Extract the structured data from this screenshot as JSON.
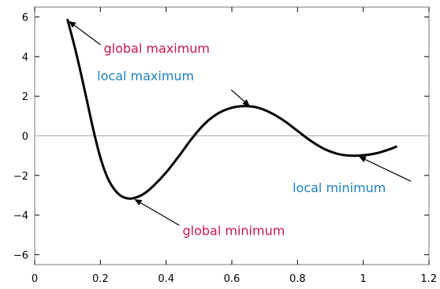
{
  "chart_data": {
    "type": "line",
    "title": "",
    "xlabel": "",
    "ylabel": "",
    "xlim": [
      0,
      1.2
    ],
    "ylim": [
      -6.5,
      6.5
    ],
    "grid": false,
    "x_ticks": [
      0,
      0.2,
      0.4,
      0.6,
      0.8,
      1,
      1.2
    ],
    "x_tick_labels": [
      "0",
      "0.2",
      "0.4",
      "0.6",
      "0.8",
      "1",
      "1.2"
    ],
    "y_ticks": [
      6,
      4,
      2,
      0,
      -2,
      -4,
      -6
    ],
    "y_tick_labels": [
      "6",
      "4",
      "2",
      "0",
      "−2",
      "−4",
      "−6"
    ],
    "zero_line": true,
    "series": [
      {
        "color": "#000000",
        "points": [
          {
            "x": 0.1,
            "y": 5.85
          },
          {
            "x": 0.12,
            "y": 4.6
          },
          {
            "x": 0.14,
            "y": 3.2
          },
          {
            "x": 0.16,
            "y": 1.7
          },
          {
            "x": 0.18,
            "y": 0.2
          },
          {
            "x": 0.2,
            "y": -1.1
          },
          {
            "x": 0.22,
            "y": -2.05
          },
          {
            "x": 0.24,
            "y": -2.65
          },
          {
            "x": 0.26,
            "y": -3.0
          },
          {
            "x": 0.28,
            "y": -3.15
          },
          {
            "x": 0.3,
            "y": -3.15
          },
          {
            "x": 0.33,
            "y": -2.95
          },
          {
            "x": 0.36,
            "y": -2.55
          },
          {
            "x": 0.4,
            "y": -1.85
          },
          {
            "x": 0.44,
            "y": -1.0
          },
          {
            "x": 0.48,
            "y": -0.1
          },
          {
            "x": 0.52,
            "y": 0.65
          },
          {
            "x": 0.56,
            "y": 1.15
          },
          {
            "x": 0.6,
            "y": 1.42
          },
          {
            "x": 0.64,
            "y": 1.5
          },
          {
            "x": 0.68,
            "y": 1.42
          },
          {
            "x": 0.72,
            "y": 1.15
          },
          {
            "x": 0.76,
            "y": 0.75
          },
          {
            "x": 0.8,
            "y": 0.25
          },
          {
            "x": 0.84,
            "y": -0.25
          },
          {
            "x": 0.88,
            "y": -0.65
          },
          {
            "x": 0.92,
            "y": -0.9
          },
          {
            "x": 0.96,
            "y": -1.0
          },
          {
            "x": 1.0,
            "y": -0.98
          },
          {
            "x": 1.04,
            "y": -0.88
          },
          {
            "x": 1.08,
            "y": -0.68
          },
          {
            "x": 1.1,
            "y": -0.55
          }
        ]
      }
    ],
    "annotations": [
      {
        "text": "global maximum",
        "color": "#c8184a",
        "text_at": {
          "x": 0.21,
          "y": 4.2
        },
        "arrow_to": {
          "x": 0.1,
          "y": 5.85
        }
      },
      {
        "text": "local maximum",
        "color": "#1f7fc4",
        "text_at": {
          "x": 0.19,
          "y": 2.8
        },
        "arrow_to": {
          "x": 0.66,
          "y": 1.5
        }
      },
      {
        "text": "local minimum",
        "color": "#1f7fc4",
        "text_at": {
          "x": 0.785,
          "y": -2.85
        },
        "arrow_to": {
          "x": 0.995,
          "y": -1.0
        }
      },
      {
        "text": "global minimum",
        "color": "#c8184a",
        "text_at": {
          "x": 0.45,
          "y": -5.0
        },
        "arrow_to": {
          "x": 0.3,
          "y": -3.15
        }
      }
    ]
  }
}
